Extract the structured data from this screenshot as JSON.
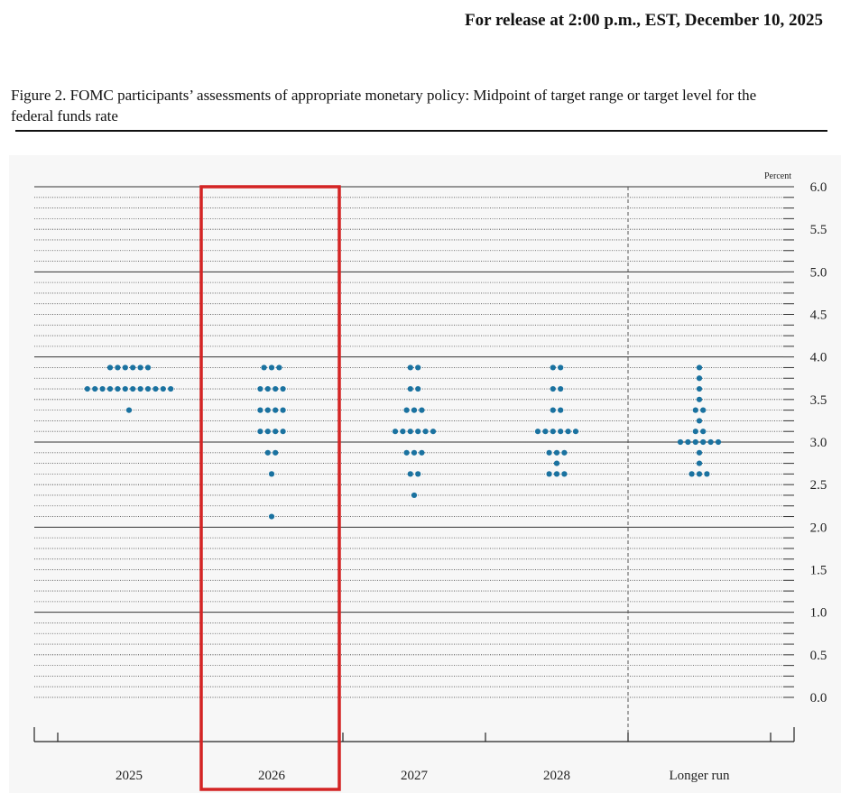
{
  "release": "For release at 2:00 p.m., EST, December 10, 2025",
  "caption": "Figure 2. FOMC participants’ assessments of appropriate monetary policy: Midpoint of target range or target level for the federal funds rate",
  "chart_data": {
    "type": "dot",
    "y_label": "Percent",
    "categories": [
      "2025",
      "2026",
      "2027",
      "2028",
      "Longer run"
    ],
    "values": [
      [
        3.875,
        3.875,
        3.875,
        3.875,
        3.875,
        3.875,
        3.625,
        3.625,
        3.625,
        3.625,
        3.625,
        3.625,
        3.625,
        3.625,
        3.625,
        3.625,
        3.625,
        3.625,
        3.375
      ],
      [
        3.875,
        3.875,
        3.875,
        3.625,
        3.625,
        3.625,
        3.625,
        3.375,
        3.375,
        3.375,
        3.375,
        3.125,
        3.125,
        3.125,
        3.125,
        2.875,
        2.875,
        2.625,
        2.125
      ],
      [
        3.875,
        3.875,
        3.625,
        3.625,
        3.375,
        3.375,
        3.375,
        3.125,
        3.125,
        3.125,
        3.125,
        3.125,
        3.125,
        2.875,
        2.875,
        2.875,
        2.625,
        2.625,
        2.375
      ],
      [
        3.875,
        3.875,
        3.625,
        3.625,
        3.375,
        3.375,
        3.125,
        3.125,
        3.125,
        3.125,
        3.125,
        3.125,
        2.875,
        2.875,
        2.875,
        2.75,
        2.625,
        2.625,
        2.625
      ],
      [
        3.875,
        3.75,
        3.625,
        3.5,
        3.375,
        3.375,
        3.25,
        3.125,
        3.125,
        3.0,
        3.0,
        3.0,
        3.0,
        3.0,
        3.0,
        2.875,
        2.75,
        2.625,
        2.625,
        2.625
      ]
    ],
    "color": "#1a72a0",
    "ylim": [
      0,
      6
    ],
    "yticks": [
      {
        "value": 0,
        "label": "0.0"
      },
      {
        "value": 0.5,
        "label": "0.5"
      },
      {
        "value": 1,
        "label": "1.0"
      },
      {
        "value": 1.5,
        "label": "1.5"
      },
      {
        "value": 2,
        "label": "2.0"
      },
      {
        "value": 2.5,
        "label": "2.5"
      },
      {
        "value": 3,
        "label": "3.0"
      },
      {
        "value": 3.5,
        "label": "3.5"
      },
      {
        "value": 4,
        "label": "4.0"
      },
      {
        "value": 4.5,
        "label": "4.5"
      },
      {
        "value": 5,
        "label": "5.0"
      },
      {
        "value": 5.5,
        "label": "5.5"
      },
      {
        "value": 6,
        "label": "6.0"
      }
    ],
    "grid": true
  }
}
